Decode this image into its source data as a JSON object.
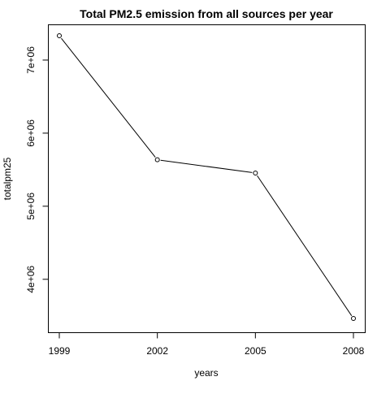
{
  "chart_data": {
    "type": "line",
    "title": "Total PM2.5 emission from all sources per year",
    "xlabel": "years",
    "ylabel": "totalpm25",
    "x": [
      1999,
      2002,
      2005,
      2008
    ],
    "values": [
      7332967,
      5635780,
      5454703,
      3464206
    ],
    "xlim": [
      1999,
      2008
    ],
    "ylim": [
      3464206,
      7332967
    ],
    "x_ticks": [
      {
        "value": 1999,
        "label": "1999"
      },
      {
        "value": 2002,
        "label": "2002"
      },
      {
        "value": 2005,
        "label": "2005"
      },
      {
        "value": 2008,
        "label": "2008"
      }
    ],
    "y_ticks": [
      {
        "value": 4000000,
        "label": "4e+06"
      },
      {
        "value": 5000000,
        "label": "5e+06"
      },
      {
        "value": 6000000,
        "label": "6e+06"
      },
      {
        "value": 7000000,
        "label": "7e+06"
      }
    ],
    "point_style": "open-circle",
    "line_color": "#000000",
    "grid": false,
    "legend": "none"
  }
}
